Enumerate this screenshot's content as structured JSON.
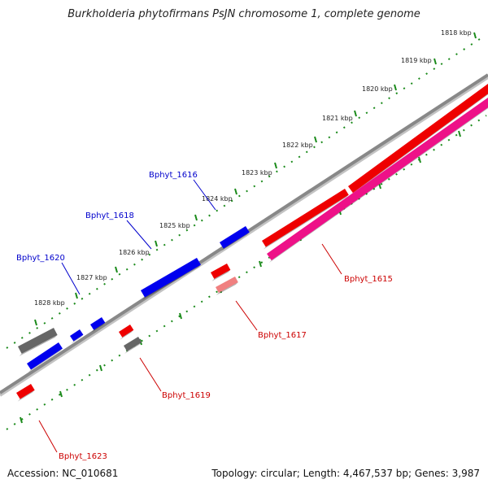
{
  "title": "Burkholderia phytofirmans PsJN chromosome 1, complete genome",
  "accession_text": "Accession: NC_010681",
  "summary_text": "Topology: circular; Length: 4,467,537 bp; Genes: 3,987",
  "colors": {
    "axis": "#888888",
    "tick": "#1a8a1a",
    "forward_gene": "#0000ee",
    "reverse_gene": "#ee0000",
    "highlight_gene": "#ee1188",
    "pseudo_gene": "#666666",
    "faded_gene": "#f08080",
    "label_forward": "#0000cc",
    "label_reverse": "#cc0000"
  },
  "kbp_labels": [
    "1818 kbp",
    "1819 kbp",
    "1820 kbp",
    "1821 kbp",
    "1822 kbp",
    "1823 kbp",
    "1824 kbp",
    "1825 kbp",
    "1826 kbp",
    "1827 kbp",
    "1828 kbp"
  ],
  "gene_labels": [
    {
      "text": "Bphyt_1616",
      "strand": "forward"
    },
    {
      "text": "Bphyt_1618",
      "strand": "forward"
    },
    {
      "text": "Bphyt_1620",
      "strand": "forward"
    },
    {
      "text": "Bphyt_1615",
      "strand": "reverse"
    },
    {
      "text": "Bphyt_1617",
      "strand": "reverse"
    },
    {
      "text": "Bphyt_1619",
      "strand": "reverse"
    },
    {
      "text": "Bphyt_1623",
      "strand": "reverse"
    }
  ]
}
